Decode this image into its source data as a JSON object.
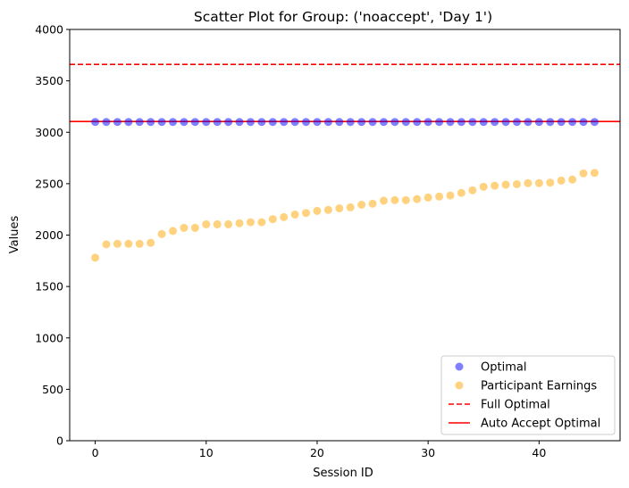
{
  "chart_data": {
    "type": "scatter",
    "title": "Scatter Plot for Group: ('noaccept', 'Day 1')",
    "xlabel": "Session ID",
    "ylabel": "Values",
    "xlim": [
      -2.3,
      47.3
    ],
    "ylim": [
      0,
      4000
    ],
    "xticks": [
      0,
      10,
      20,
      30,
      40
    ],
    "yticks": [
      0,
      500,
      1000,
      1500,
      2000,
      2500,
      3000,
      3500,
      4000
    ],
    "grid": false,
    "legend_position": "bottom-right",
    "series": [
      {
        "name": "Optimal",
        "kind": "scatter",
        "color": "#0000ff",
        "x": [
          0,
          1,
          2,
          3,
          4,
          5,
          6,
          7,
          8,
          9,
          10,
          11,
          12,
          13,
          14,
          15,
          16,
          17,
          18,
          19,
          20,
          21,
          22,
          23,
          24,
          25,
          26,
          27,
          28,
          29,
          30,
          31,
          32,
          33,
          34,
          35,
          36,
          37,
          38,
          39,
          40,
          41,
          42,
          43,
          44,
          45
        ],
        "y": [
          3100,
          3100,
          3100,
          3100,
          3100,
          3100,
          3100,
          3100,
          3100,
          3100,
          3100,
          3100,
          3100,
          3100,
          3100,
          3100,
          3100,
          3100,
          3100,
          3100,
          3100,
          3100,
          3100,
          3100,
          3100,
          3100,
          3100,
          3100,
          3100,
          3100,
          3100,
          3100,
          3100,
          3100,
          3100,
          3100,
          3100,
          3100,
          3100,
          3100,
          3100,
          3100,
          3100,
          3100,
          3100,
          3100
        ]
      },
      {
        "name": "Participant Earnings",
        "kind": "scatter",
        "color": "#ffa500",
        "x": [
          0,
          1,
          2,
          3,
          4,
          5,
          6,
          7,
          8,
          9,
          10,
          11,
          12,
          13,
          14,
          15,
          16,
          17,
          18,
          19,
          20,
          21,
          22,
          23,
          24,
          25,
          26,
          27,
          28,
          29,
          30,
          31,
          32,
          33,
          34,
          35,
          36,
          37,
          38,
          39,
          40,
          41,
          42,
          43,
          44,
          45
        ],
        "y": [
          1780,
          1910,
          1915,
          1915,
          1915,
          1925,
          2010,
          2040,
          2070,
          2070,
          2105,
          2105,
          2105,
          2115,
          2125,
          2125,
          2155,
          2175,
          2200,
          2215,
          2235,
          2245,
          2260,
          2270,
          2295,
          2305,
          2335,
          2340,
          2340,
          2350,
          2365,
          2375,
          2385,
          2410,
          2435,
          2470,
          2480,
          2490,
          2495,
          2505,
          2505,
          2510,
          2530,
          2540,
          2600,
          2605
        ]
      },
      {
        "name": "Full Optimal",
        "kind": "hline",
        "style": "dashed",
        "color": "#ff0000",
        "y": 3660
      },
      {
        "name": "Auto Accept Optimal",
        "kind": "hline",
        "style": "solid",
        "color": "#ff0000",
        "y": 3105
      }
    ]
  }
}
